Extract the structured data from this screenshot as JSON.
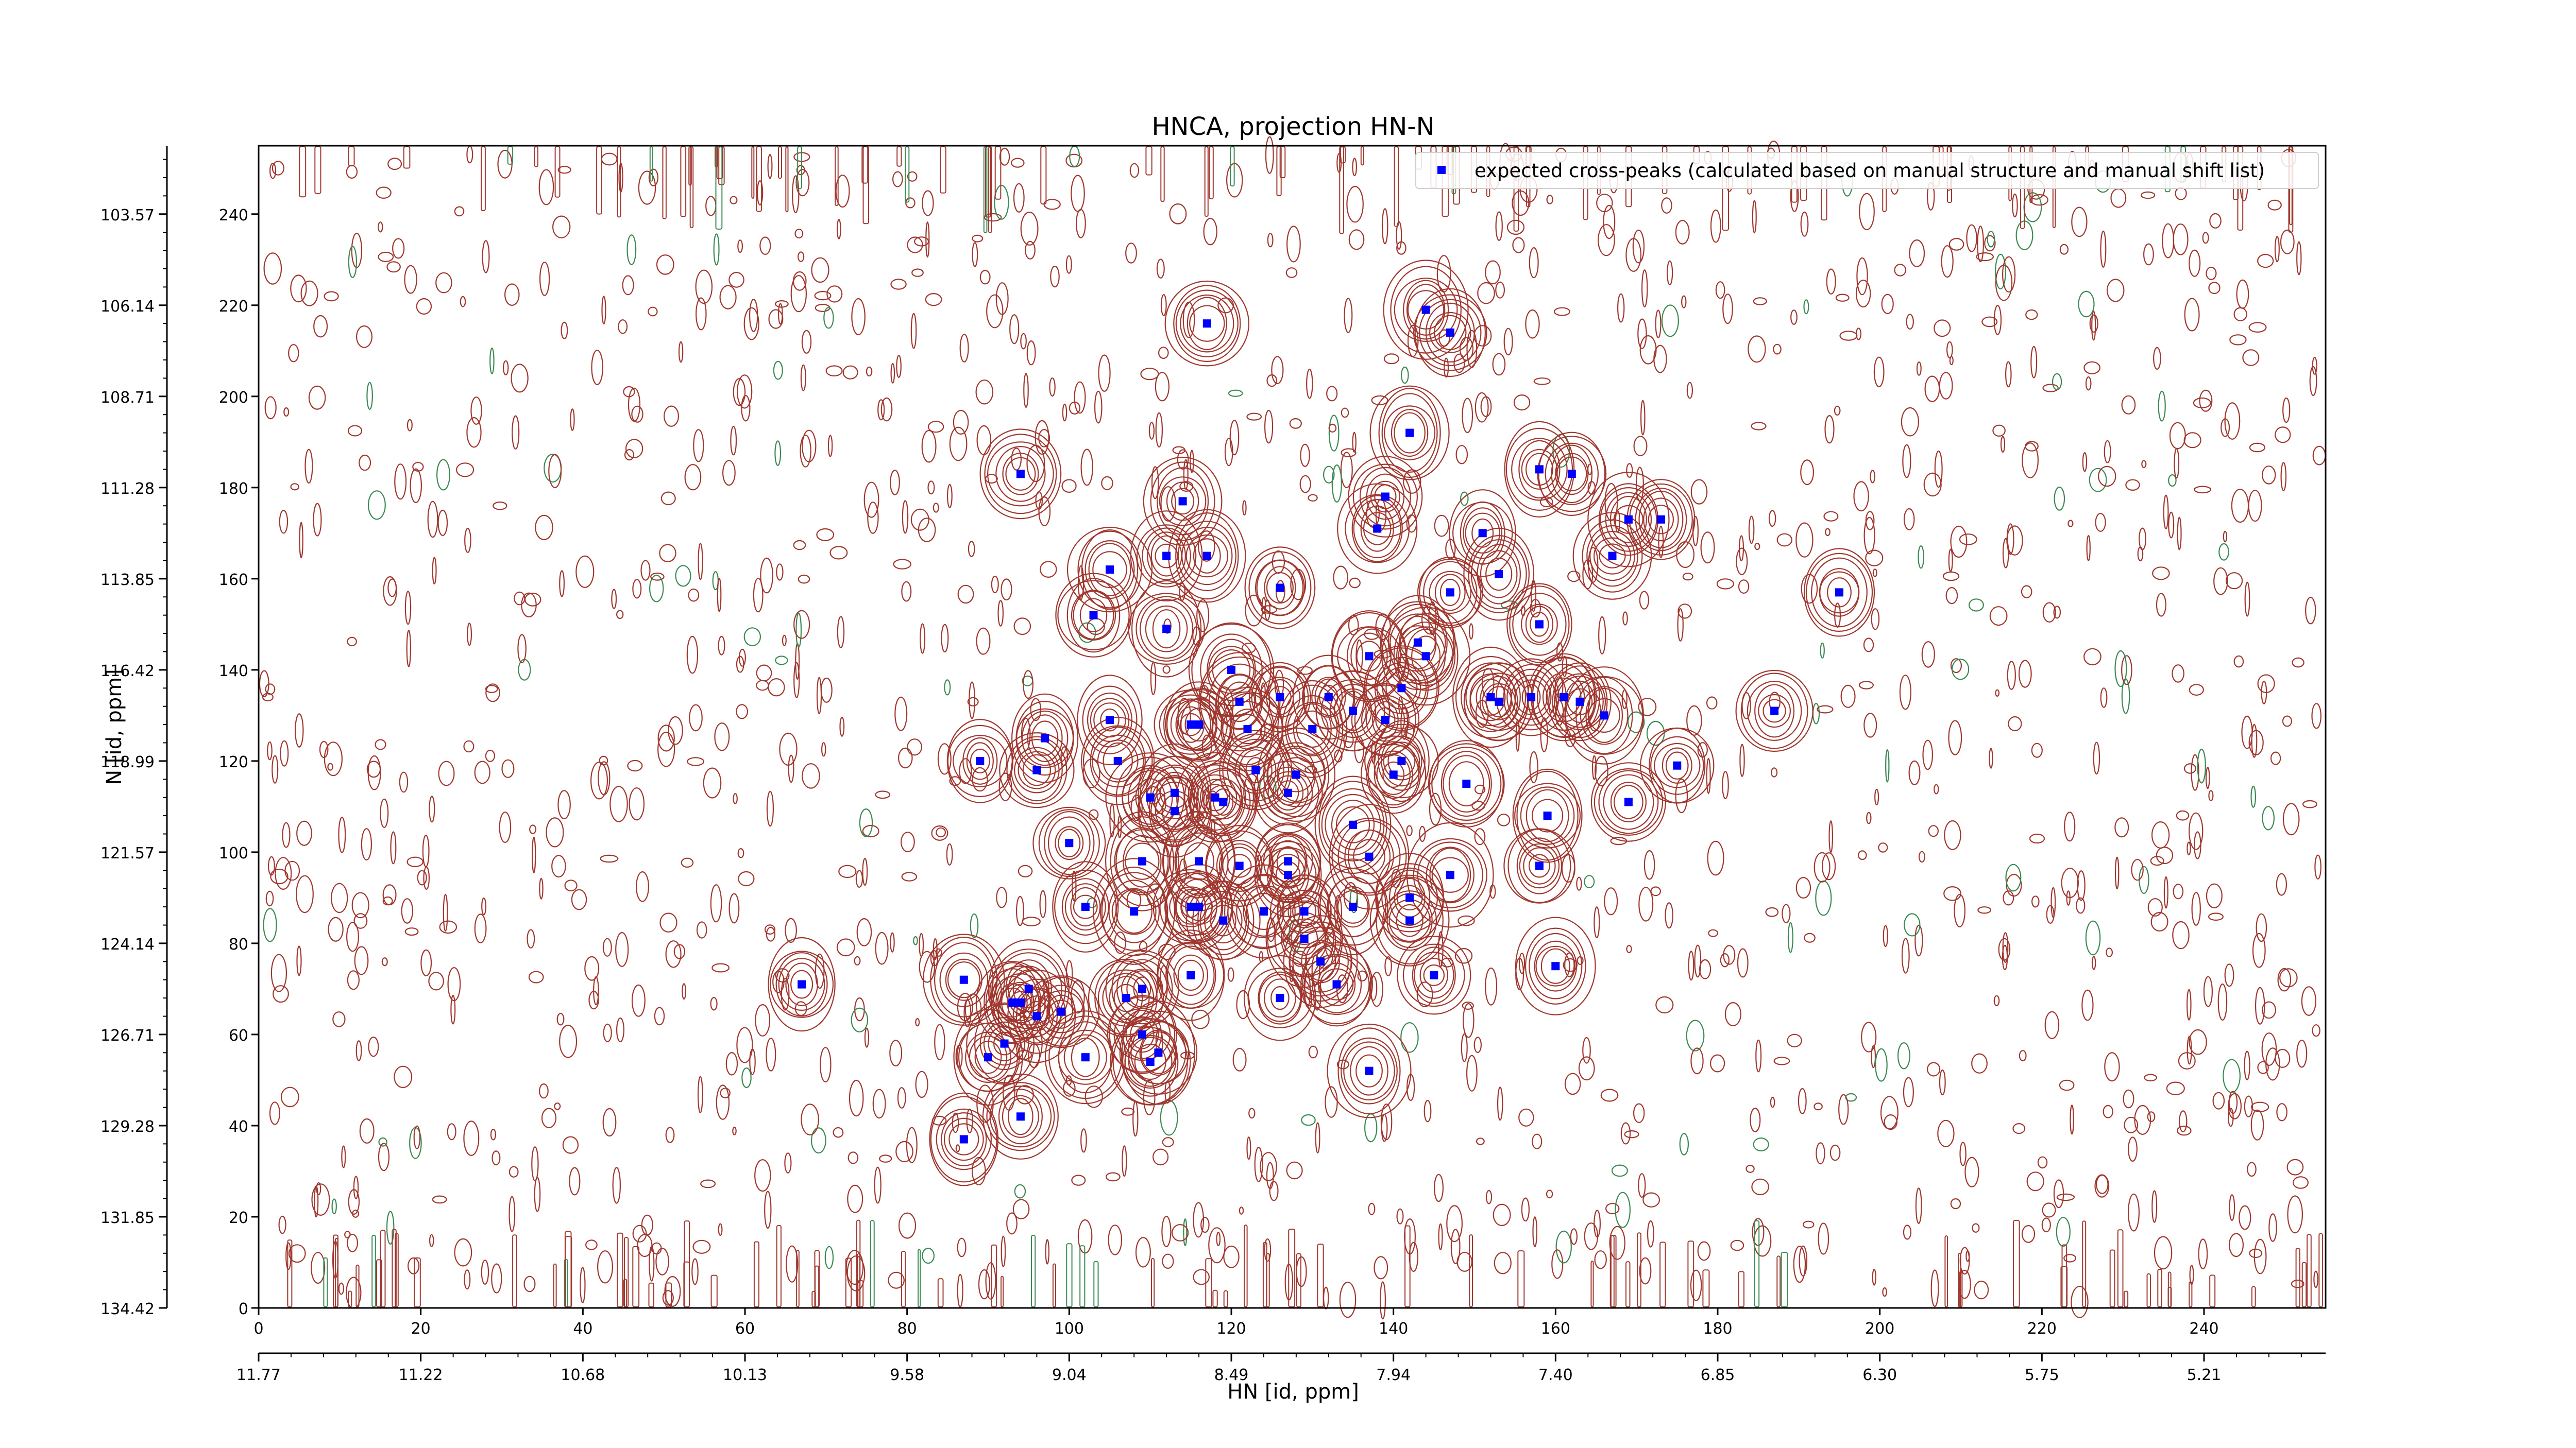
{
  "chart_data": {
    "type": "contour",
    "title": "HNCA, projection HN-N",
    "xlabel": "HN [id, ppm]",
    "ylabel": "N [id, ppm]",
    "xlim": [
      0,
      255
    ],
    "ylim": [
      0,
      255
    ],
    "x_index_ticks": [
      "0",
      "20",
      "40",
      "60",
      "80",
      "100",
      "120",
      "140",
      "160",
      "180",
      "200",
      "220",
      "240"
    ],
    "x_index_tick_values": [
      0,
      20,
      40,
      60,
      80,
      100,
      120,
      140,
      160,
      180,
      200,
      220,
      240
    ],
    "x_ppm_ticks": [
      "11.77",
      "11.22",
      "10.68",
      "10.13",
      "9.58",
      "9.04",
      "8.49",
      "7.94",
      "7.40",
      "6.85",
      "6.30",
      "5.75",
      "5.21"
    ],
    "y_index_ticks": [
      "0",
      "20",
      "40",
      "60",
      "80",
      "100",
      "120",
      "140",
      "160",
      "180",
      "200",
      "220",
      "240"
    ],
    "y_index_tick_values": [
      0,
      20,
      40,
      60,
      80,
      100,
      120,
      140,
      160,
      180,
      200,
      220,
      240
    ],
    "y_ppm_ticks": [
      "134.42",
      "131.85",
      "129.28",
      "126.71",
      "124.14",
      "121.57",
      "118.99",
      "116.42",
      "113.85",
      "111.28",
      "108.71",
      "106.14",
      "103.57"
    ],
    "legend": {
      "position": "top-right",
      "label": "expected cross-peaks (calculated based on manual structure and manual shift list)"
    },
    "colors": {
      "positive_contour": "#a0372e",
      "negative_contour": "#3a8a52",
      "peak_marker": "#0000ff"
    },
    "peaks": [
      [
        117,
        216
      ],
      [
        144,
        219
      ],
      [
        147,
        214
      ],
      [
        142,
        192
      ],
      [
        94,
        183
      ],
      [
        114,
        177
      ],
      [
        139,
        178
      ],
      [
        138,
        171
      ],
      [
        158,
        184
      ],
      [
        162,
        183
      ],
      [
        169,
        173
      ],
      [
        173,
        173
      ],
      [
        167,
        165
      ],
      [
        151,
        170
      ],
      [
        153,
        161
      ],
      [
        158,
        150
      ],
      [
        105,
        162
      ],
      [
        112,
        165
      ],
      [
        117,
        165
      ],
      [
        126,
        158
      ],
      [
        147,
        157
      ],
      [
        195,
        157
      ],
      [
        103,
        152
      ],
      [
        112,
        149
      ],
      [
        143,
        146
      ],
      [
        144,
        143
      ],
      [
        120,
        140
      ],
      [
        137,
        143
      ],
      [
        121,
        133
      ],
      [
        126,
        134
      ],
      [
        132,
        134
      ],
      [
        135,
        131
      ],
      [
        141,
        136
      ],
      [
        152,
        134
      ],
      [
        153,
        133
      ],
      [
        157,
        134
      ],
      [
        161,
        134
      ],
      [
        163,
        133
      ],
      [
        166,
        130
      ],
      [
        187,
        131
      ],
      [
        105,
        129
      ],
      [
        97,
        125
      ],
      [
        115,
        128
      ],
      [
        116,
        128
      ],
      [
        122,
        127
      ],
      [
        130,
        127
      ],
      [
        139,
        129
      ],
      [
        89,
        120
      ],
      [
        96,
        118
      ],
      [
        106,
        120
      ],
      [
        123,
        118
      ],
      [
        128,
        117
      ],
      [
        141,
        120
      ],
      [
        140,
        117
      ],
      [
        149,
        115
      ],
      [
        175,
        119
      ],
      [
        110,
        112
      ],
      [
        113,
        113
      ],
      [
        113,
        109
      ],
      [
        118,
        112
      ],
      [
        119,
        111
      ],
      [
        127,
        113
      ],
      [
        135,
        106
      ],
      [
        159,
        108
      ],
      [
        169,
        111
      ],
      [
        100,
        102
      ],
      [
        109,
        98
      ],
      [
        116,
        98
      ],
      [
        121,
        97
      ],
      [
        127,
        98
      ],
      [
        127,
        95
      ],
      [
        137,
        99
      ],
      [
        142,
        90
      ],
      [
        147,
        95
      ],
      [
        158,
        97
      ],
      [
        102,
        88
      ],
      [
        108,
        87
      ],
      [
        115,
        88
      ],
      [
        116,
        88
      ],
      [
        119,
        85
      ],
      [
        124,
        87
      ],
      [
        129,
        87
      ],
      [
        129,
        81
      ],
      [
        135,
        88
      ],
      [
        142,
        85
      ],
      [
        131,
        76
      ],
      [
        67,
        71
      ],
      [
        87,
        72
      ],
      [
        95,
        70
      ],
      [
        94,
        67
      ],
      [
        93,
        67
      ],
      [
        96,
        64
      ],
      [
        99,
        65
      ],
      [
        107,
        68
      ],
      [
        109,
        70
      ],
      [
        115,
        73
      ],
      [
        126,
        68
      ],
      [
        133,
        71
      ],
      [
        145,
        73
      ],
      [
        160,
        75
      ],
      [
        90,
        55
      ],
      [
        92,
        58
      ],
      [
        109,
        60
      ],
      [
        111,
        56
      ],
      [
        102,
        55
      ],
      [
        110,
        54
      ],
      [
        137,
        52
      ],
      [
        94,
        42
      ],
      [
        87,
        37
      ]
    ]
  }
}
